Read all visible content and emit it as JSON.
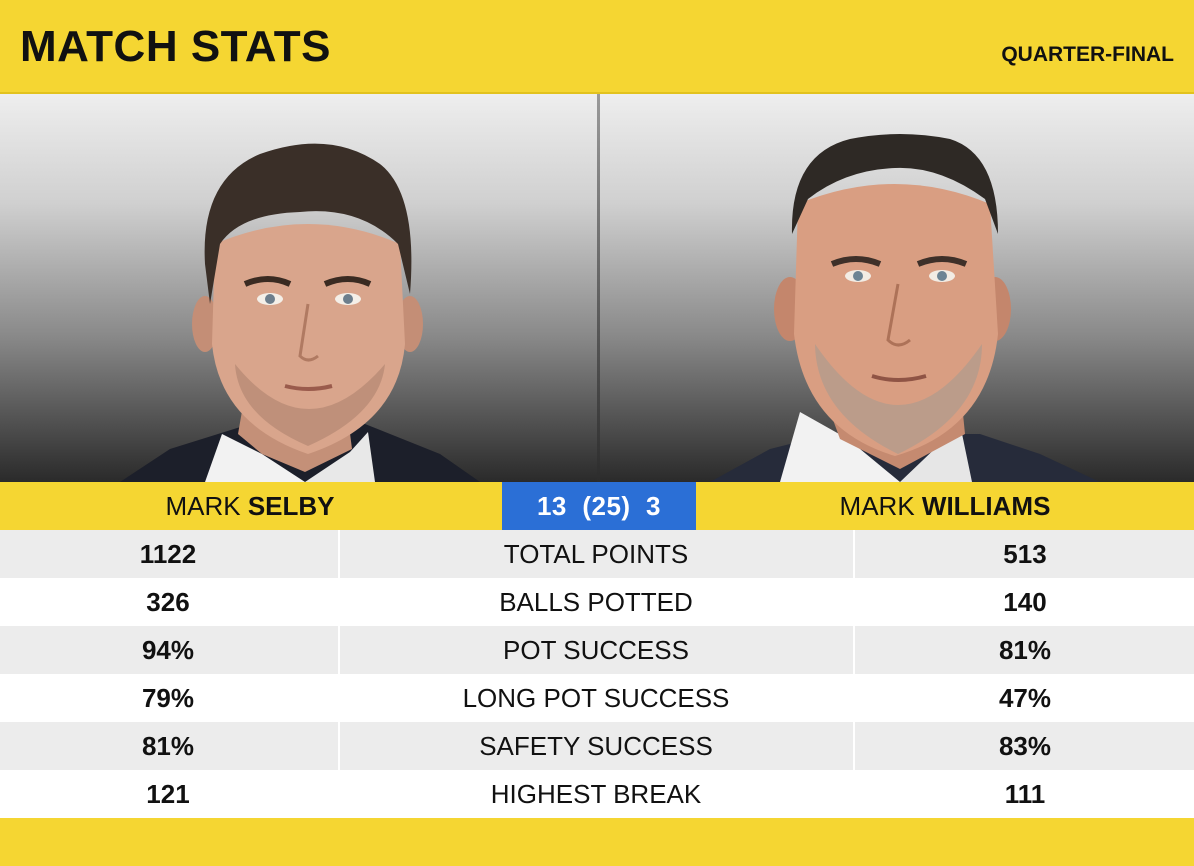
{
  "header": {
    "title": "MATCH STATS",
    "round": "QUARTER-FINAL"
  },
  "players": {
    "left": {
      "first": "MARK",
      "last": "SELBY"
    },
    "right": {
      "first": "MARK",
      "last": "WILLIAMS"
    }
  },
  "score": {
    "left_frames": "13",
    "best_of": "(25)",
    "right_frames": "3"
  },
  "stats": [
    {
      "left": "1122",
      "label": "TOTAL POINTS",
      "right": "513"
    },
    {
      "left": "326",
      "label": "BALLS POTTED",
      "right": "140"
    },
    {
      "left": "94%",
      "label": "POT SUCCESS",
      "right": "81%"
    },
    {
      "left": "79%",
      "label": "LONG POT SUCCESS",
      "right": "47%"
    },
    {
      "left": "81%",
      "label": "SAFETY SUCCESS",
      "right": "83%"
    },
    {
      "left": "121",
      "label": "HIGHEST BREAK",
      "right": "111"
    }
  ],
  "colors": {
    "brand_yellow": "#f5d632",
    "score_blue": "#2b6fd6",
    "row_alt": "#ececec"
  }
}
